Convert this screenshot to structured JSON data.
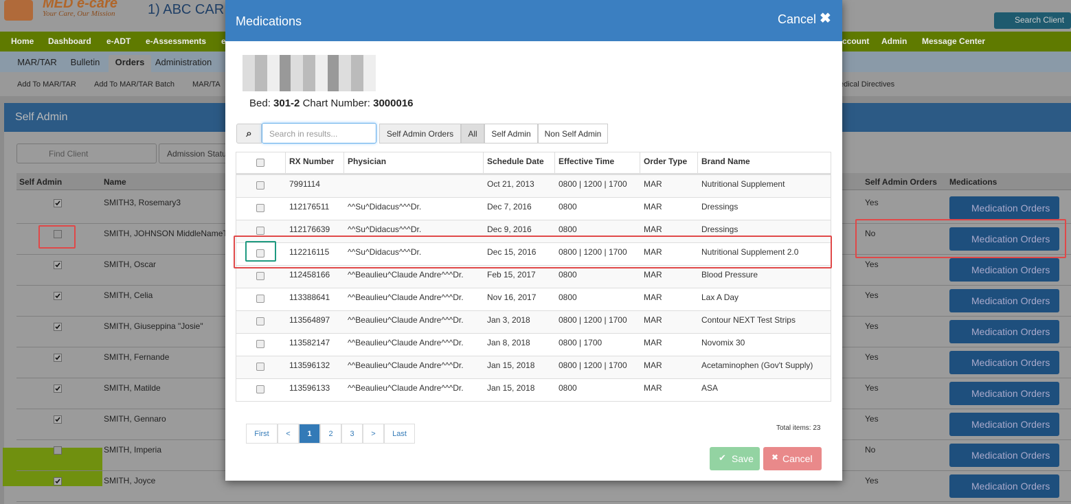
{
  "header": {
    "logo": "MED e-care",
    "tagline": "Your Care, Our Mission",
    "facility": "1) ABC CAR",
    "search_button": "Search Client"
  },
  "nav": [
    "Home",
    "Dashboard",
    "e-ADT",
    "e-Assessments",
    "e",
    "ccount",
    "Admin",
    "Message Center"
  ],
  "tabs": [
    "MAR/TAR",
    "Bulletin",
    "Orders",
    "Administration"
  ],
  "subnav": [
    "Add To MAR/TAR",
    "Add To MAR/TAR Batch",
    "MAR/TA",
    "edical Directives"
  ],
  "panel": {
    "title": "Self Admin",
    "find_placeholder": "Find Client",
    "admission_filter": "Admission Statu"
  },
  "client_table": {
    "headers": [
      "Self Admin",
      "Name",
      "Self Admin Orders",
      "Medications"
    ],
    "button": "Medication Orders",
    "rows": [
      {
        "self_admin": true,
        "name": "SMITH3, Rosemary3",
        "orders": "Yes"
      },
      {
        "self_admin": false,
        "name": "SMITH, JOHNSON MiddleNameT",
        "orders": "No"
      },
      {
        "self_admin": true,
        "name": "SMITH, Oscar",
        "orders": "Yes"
      },
      {
        "self_admin": true,
        "name": "SMITH, Celia",
        "orders": "Yes"
      },
      {
        "self_admin": true,
        "name": "SMITH, Giuseppina \"Josie\"",
        "orders": "Yes"
      },
      {
        "self_admin": true,
        "name": "SMITH, Fernande",
        "orders": "Yes"
      },
      {
        "self_admin": true,
        "name": "SMITH, Matilde",
        "orders": "Yes"
      },
      {
        "self_admin": true,
        "name": "SMITH, Gennaro",
        "orders": "Yes"
      },
      {
        "self_admin": false,
        "name": "SMITH, Imperia",
        "orders": "No"
      },
      {
        "self_admin": true,
        "name": "SMITH, Joyce",
        "orders": "Yes"
      }
    ]
  },
  "modal": {
    "title": "Medications",
    "close": "Cancel",
    "bed_label": "Bed:",
    "bed": "301-2",
    "chart_label": "Chart Number:",
    "chart": "3000016",
    "search_placeholder": "Search in results...",
    "filters": [
      "Self Admin Orders",
      "All",
      "Self Admin",
      "Non Self Admin"
    ],
    "active_filter": 1,
    "headers": [
      "RX Number",
      "Physician",
      "Schedule Date",
      "Effective Time",
      "Order Type",
      "Brand Name"
    ],
    "rows": [
      [
        "7991114",
        "",
        "Oct 21, 2013",
        "0800 | 1200 | 1700",
        "MAR",
        "Nutritional Supplement"
      ],
      [
        "112176511",
        "^^Su^Didacus^^^Dr.",
        "Dec 7, 2016",
        "0800",
        "MAR",
        "Dressings"
      ],
      [
        "112176639",
        "^^Su^Didacus^^^Dr.",
        "Dec 9, 2016",
        "0800",
        "MAR",
        "Dressings"
      ],
      [
        "112216115",
        "^^Su^Didacus^^^Dr.",
        "Dec 15, 2016",
        "0800 | 1200 | 1700",
        "MAR",
        "Nutritional Supplement 2.0"
      ],
      [
        "112458166",
        "^^Beaulieu^Claude Andre^^^Dr.",
        "Feb 15, 2017",
        "0800",
        "MAR",
        "Blood Pressure"
      ],
      [
        "113388641",
        "^^Beaulieu^Claude Andre^^^Dr.",
        "Nov 16, 2017",
        "0800",
        "MAR",
        "Lax A Day"
      ],
      [
        "113564897",
        "^^Beaulieu^Claude Andre^^^Dr.",
        "Jan 3, 2018",
        "0800 | 1200 | 1700",
        "MAR",
        "Contour NEXT Test Strips"
      ],
      [
        "113582147",
        "^^Beaulieu^Claude Andre^^^Dr.",
        "Jan 8, 2018",
        "0800 | 1700",
        "MAR",
        "Novomix 30"
      ],
      [
        "113596132",
        "^^Beaulieu^Claude Andre^^^Dr.",
        "Jan 15, 2018",
        "0800 | 1200 | 1700",
        "MAR",
        "Acetaminophen (Gov't Supply)"
      ],
      [
        "113596133",
        "^^Beaulieu^Claude Andre^^^Dr.",
        "Jan 15, 2018",
        "0800",
        "MAR",
        "ASA"
      ]
    ],
    "pagination": [
      "First",
      "<",
      "1",
      "2",
      "3",
      ">",
      "Last"
    ],
    "active_page": 2,
    "total": "Total items: 23",
    "save": "Save",
    "cancel": "Cancel"
  }
}
